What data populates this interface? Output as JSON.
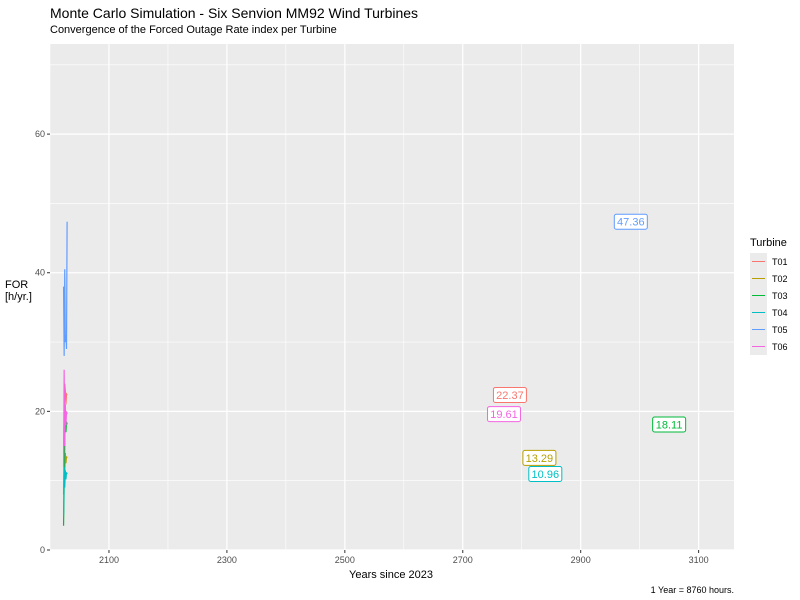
{
  "title": "Monte Carlo Simulation - Six Senvion MM92 Wind Turbines",
  "subtitle": "Convergence of the Forced Outage Rate index per Turbine",
  "caption": "1 Year = 8760 hours.",
  "colors": {
    "panel": "#ebebeb",
    "grid": "#ffffff"
  },
  "chart_data": {
    "type": "line",
    "xlabel": "Years since 2023",
    "ylabel": [
      "FOR",
      "[h/yr.]"
    ],
    "xlim": [
      2000,
      3160
    ],
    "ylim": [
      0,
      73
    ],
    "x_ticks": [
      2100,
      2300,
      2500,
      2700,
      2900,
      3100
    ],
    "y_ticks": [
      0,
      20,
      40,
      60
    ],
    "grid": true,
    "legend": {
      "title": "Turbine",
      "position": "right"
    },
    "series": [
      {
        "name": "T01",
        "color": "#F8766D",
        "x": [
          2023,
          2024,
          2025,
          2026,
          2027,
          2028,
          2029
        ],
        "y": [
          14,
          19,
          24,
          23,
          21,
          22.5,
          22.37
        ],
        "final_label": "22.37",
        "label_at": [
          2780,
          22.37
        ]
      },
      {
        "name": "T02",
        "color": "#B79F00",
        "x": [
          2023,
          2024,
          2025,
          2026,
          2027,
          2028,
          2029
        ],
        "y": [
          8,
          15,
          11,
          14,
          12.5,
          13.5,
          13.29
        ],
        "final_label": "13.29",
        "label_at": [
          2830,
          13.29
        ]
      },
      {
        "name": "T03",
        "color": "#00BA38",
        "x": [
          2023,
          2024,
          2025,
          2026,
          2027,
          2028,
          2029
        ],
        "y": [
          3.5,
          9,
          15,
          20,
          17,
          18.5,
          18.11
        ],
        "final_label": "18.11",
        "label_at": [
          3050,
          18.11
        ]
      },
      {
        "name": "T04",
        "color": "#00BFC4",
        "x": [
          2023,
          2024,
          2025,
          2026,
          2027,
          2028,
          2029
        ],
        "y": [
          5,
          12,
          9,
          11.5,
          10.2,
          11.2,
          10.96
        ],
        "final_label": "10.96",
        "label_at": [
          2840,
          10.96
        ]
      },
      {
        "name": "T05",
        "color": "#619CFF",
        "x": [
          2023,
          2024,
          2025,
          2026,
          2027,
          2028,
          2029
        ],
        "y": [
          38,
          28,
          40.5,
          30,
          31,
          29,
          47.36
        ],
        "final_label": "47.36",
        "label_at": [
          2985,
          47.36
        ]
      },
      {
        "name": "T06",
        "color": "#F564E3",
        "x": [
          2023,
          2024,
          2025,
          2026,
          2027,
          2028,
          2029
        ],
        "y": [
          12,
          26,
          15,
          21,
          18,
          20,
          19.61
        ],
        "final_label": "19.61",
        "label_at": [
          2770,
          19.61
        ]
      }
    ]
  }
}
